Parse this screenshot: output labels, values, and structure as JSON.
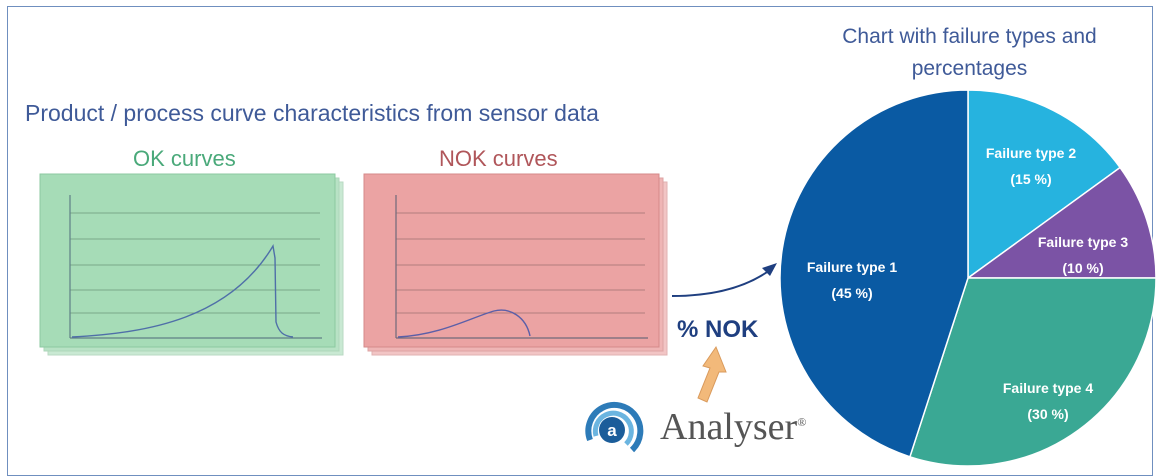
{
  "diagram": {
    "main_title": "Product / process curve characteristics from sensor data",
    "ok_label": "OK curves",
    "nok_label": "NOK curves",
    "pct_nok_label": "% NOK",
    "analyser_brand": "Analyser",
    "registered_mark": "®",
    "chart_title": "Chart with failure types and percentages",
    "colors": {
      "ok_panel": "#a6dcb7",
      "nok_panel": "#eba3a3",
      "title_blue": "#3f5a98",
      "arrow_orange": "#f2b97a"
    }
  },
  "chart_data": {
    "type": "pie",
    "title": "Chart with failure types and percentages",
    "slices": [
      {
        "label": "Failure type 1",
        "pct_label": "(45 %)",
        "value": 45,
        "color": "#0a5aa3"
      },
      {
        "label": "Failure type 2",
        "pct_label": "(15 %)",
        "value": 15,
        "color": "#26b3df"
      },
      {
        "label": "Failure type 3",
        "pct_label": "(10 %)",
        "value": 10,
        "color": "#7b53a5"
      },
      {
        "label": "Failure type 4",
        "pct_label": "(30 %)",
        "value": 30,
        "color": "#3aa894"
      }
    ]
  }
}
